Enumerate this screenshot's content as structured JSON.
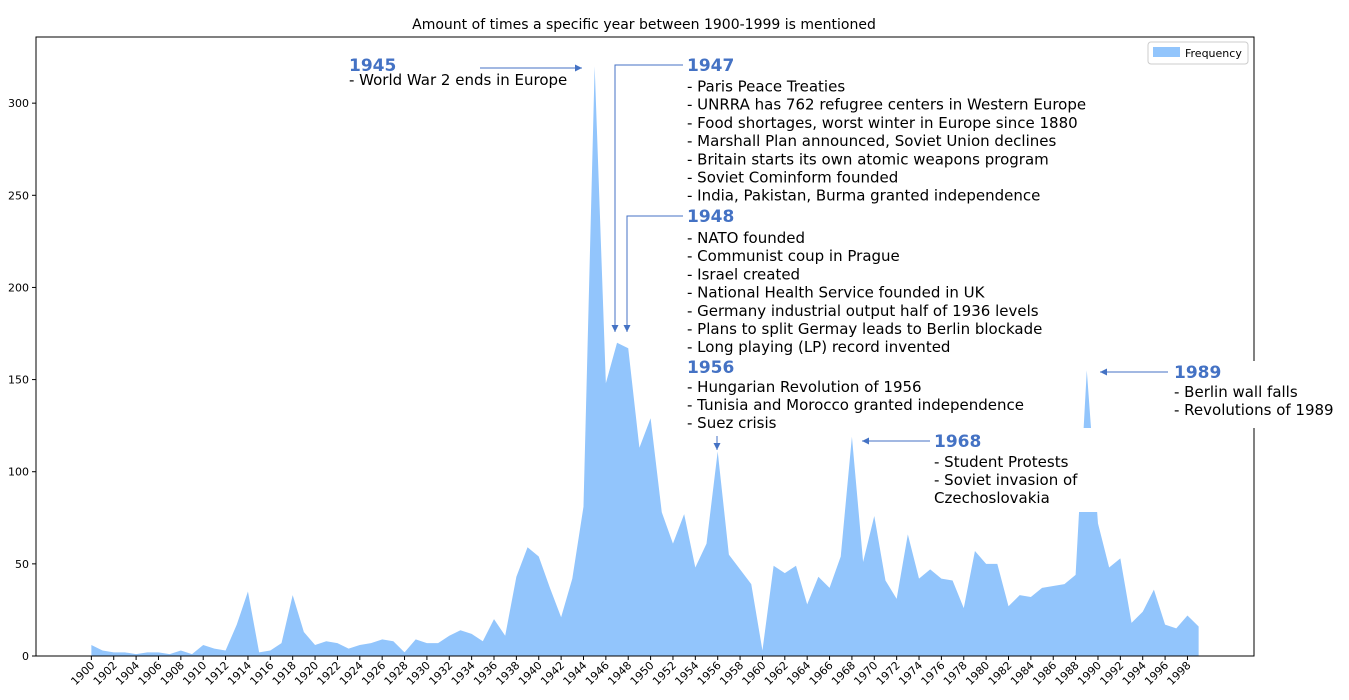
{
  "chart_data": {
    "type": "area",
    "title": "Amount of times a specific year between 1900-1999 is mentioned",
    "x": [
      1900,
      1901,
      1902,
      1903,
      1904,
      1905,
      1906,
      1907,
      1908,
      1909,
      1910,
      1911,
      1912,
      1913,
      1914,
      1915,
      1916,
      1917,
      1918,
      1919,
      1920,
      1921,
      1922,
      1923,
      1924,
      1925,
      1926,
      1927,
      1928,
      1929,
      1930,
      1931,
      1932,
      1933,
      1934,
      1935,
      1936,
      1937,
      1938,
      1939,
      1940,
      1941,
      1942,
      1943,
      1944,
      1945,
      1946,
      1947,
      1948,
      1949,
      1950,
      1951,
      1952,
      1953,
      1954,
      1955,
      1956,
      1957,
      1958,
      1959,
      1960,
      1961,
      1962,
      1963,
      1964,
      1965,
      1966,
      1967,
      1968,
      1969,
      1970,
      1971,
      1972,
      1973,
      1974,
      1975,
      1976,
      1977,
      1978,
      1979,
      1980,
      1981,
      1982,
      1983,
      1984,
      1985,
      1986,
      1987,
      1988,
      1989,
      1990,
      1991,
      1992,
      1993,
      1994,
      1995,
      1996,
      1997,
      1998,
      1999
    ],
    "series": [
      {
        "name": "Frequency",
        "color": "#92c5fc",
        "values": [
          6,
          3,
          2,
          2,
          1,
          2,
          2,
          1,
          3,
          1,
          6,
          4,
          3,
          17,
          35,
          2,
          3,
          7,
          33,
          13,
          6,
          8,
          7,
          4,
          6,
          7,
          9,
          8,
          2,
          9,
          7,
          7,
          11,
          14,
          12,
          8,
          20,
          11,
          43,
          59,
          54,
          37,
          21,
          42,
          81,
          320,
          148,
          170,
          167,
          113,
          129,
          78,
          61,
          77,
          48,
          61,
          111,
          55,
          47,
          39,
          3,
          49,
          45,
          49,
          28,
          43,
          37,
          54,
          119,
          51,
          76,
          41,
          31,
          66,
          42,
          47,
          42,
          41,
          26,
          57,
          50,
          50,
          27,
          33,
          32,
          37,
          38,
          39,
          44,
          155,
          72,
          48,
          53,
          18,
          24,
          36,
          17,
          15,
          22,
          16
        ]
      }
    ],
    "xlim": [
      1895.05,
      2003.95
    ],
    "xticks": [
      1900,
      1902,
      1904,
      1906,
      1908,
      1910,
      1912,
      1914,
      1916,
      1918,
      1920,
      1922,
      1924,
      1926,
      1928,
      1930,
      1932,
      1934,
      1936,
      1938,
      1940,
      1942,
      1944,
      1946,
      1948,
      1950,
      1952,
      1954,
      1956,
      1958,
      1960,
      1962,
      1964,
      1966,
      1968,
      1970,
      1972,
      1974,
      1976,
      1978,
      1980,
      1982,
      1984,
      1986,
      1988,
      1990,
      1992,
      1994,
      1996,
      1998
    ],
    "ylim": [
      0,
      335.9
    ],
    "yticks": [
      0,
      50,
      100,
      150,
      200,
      250,
      300
    ],
    "legend": "upper right",
    "annotations": [
      {
        "title": "1945",
        "lines": [
          "- World War 2 ends in Europe"
        ]
      },
      {
        "title": "1947",
        "lines": [
          "- Paris Peace Treaties",
          "- UNRRA has 762 refugree centers in Western Europe",
          "- Food shortages, worst winter in Europe since 1880",
          "- Marshall Plan announced, Soviet Union declines",
          "- Britain starts its own atomic weapons program",
          "- Soviet Cominform founded",
          "- India, Pakistan, Burma granted independence"
        ]
      },
      {
        "title": "1948",
        "lines": [
          "- NATO founded",
          "- Communist coup in Prague",
          "- Israel created",
          "- National Health Service founded in UK",
          "- Germany industrial output half of 1936 levels",
          "- Plans to split Germay leads to Berlin blockade",
          "- Long playing (LP) record invented"
        ]
      },
      {
        "title": "1956",
        "lines": [
          "- Hungarian Revolution of 1956",
          "- Tunisia and Morocco granted independence",
          "- Suez crisis"
        ]
      },
      {
        "title": "1968",
        "lines": [
          "- Student Protests",
          "- Soviet invasion of",
          "Czechoslovakia"
        ]
      },
      {
        "title": "1989",
        "lines": [
          "- Berlin wall falls",
          "- Revolutions of 1989"
        ]
      }
    ]
  }
}
